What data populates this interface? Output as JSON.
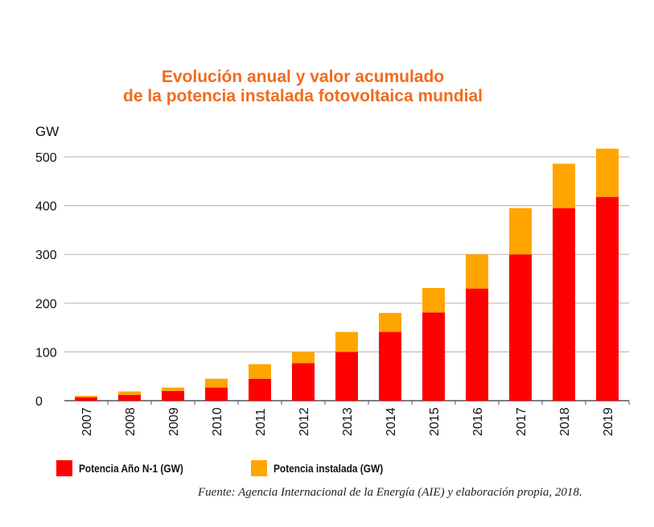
{
  "chart_data": {
    "type": "bar",
    "stacked": true,
    "title_lines": [
      "Evolución anual y valor acumulado",
      "de la potencia instalada fotovoltaica mundial"
    ],
    "ylabel": "GW",
    "ylim": [
      0,
      520
    ],
    "yticks": [
      0,
      100,
      200,
      300,
      400,
      500
    ],
    "grid": true,
    "categories": [
      "2007",
      "2008",
      "2009",
      "2010",
      "2011",
      "2012",
      "2013",
      "2014",
      "2015",
      "2016",
      "2017",
      "2018",
      "2019"
    ],
    "series": [
      {
        "name": "Potencia Año N-1 (GW)",
        "color": "#ff0000",
        "values": [
          7,
          12,
          20,
          27,
          45,
          77,
          100,
          141,
          181,
          230,
          300,
          395,
          418
        ]
      },
      {
        "name": "Potencia instalada (GW)",
        "color": "#ffa500",
        "values": [
          3,
          7,
          7,
          18,
          30,
          23,
          41,
          39,
          50,
          70,
          95,
          91,
          99
        ]
      }
    ],
    "legend_position": "bottom-left",
    "source": "Fuente: Agencia Internacional de la Energía (AIE) y elaboración propia, 2018."
  }
}
